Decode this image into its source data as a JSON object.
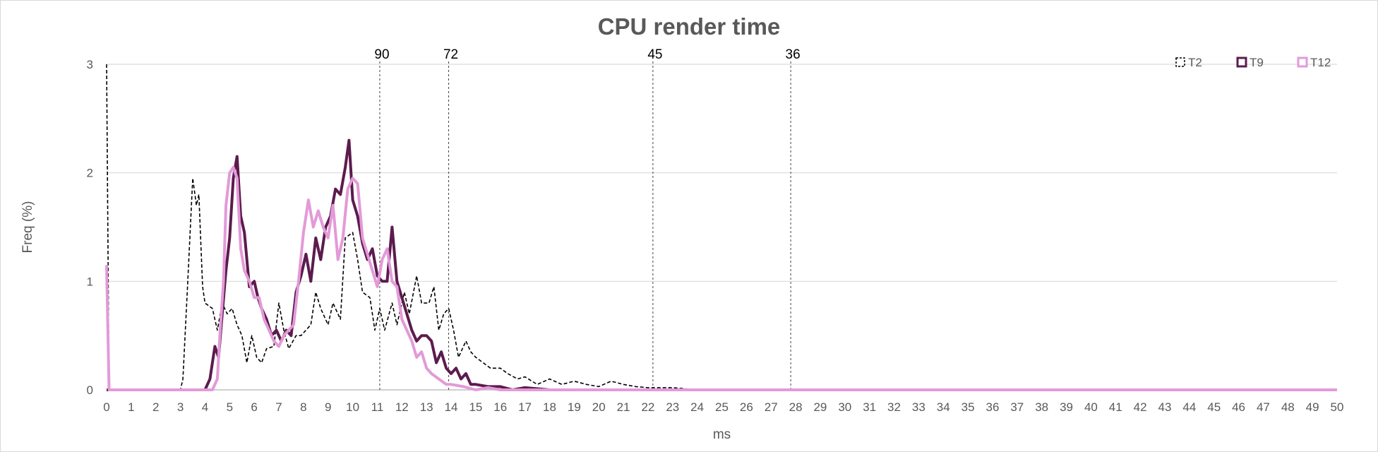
{
  "chart_data": {
    "type": "line",
    "title": "CPU render time",
    "xlabel": "ms",
    "ylabel": "Freq (%)",
    "xlim": [
      0,
      50
    ],
    "ylim": [
      0,
      3
    ],
    "x_ticks": [
      "0",
      "1",
      "2",
      "3",
      "4",
      "5",
      "6",
      "7",
      "8",
      "9",
      "10",
      "11",
      "12",
      "13",
      "14",
      "15",
      "16",
      "17",
      "18",
      "19",
      "20",
      "21",
      "22",
      "23",
      "24",
      "25",
      "26",
      "27",
      "28",
      "29",
      "30",
      "31",
      "32",
      "33",
      "34",
      "35",
      "36",
      "37",
      "38",
      "39",
      "40",
      "41",
      "42",
      "43",
      "44",
      "45",
      "46",
      "47",
      "48",
      "49",
      "50"
    ],
    "y_ticks": [
      "0",
      "1",
      "2",
      "3"
    ],
    "grid": "horizontal",
    "legend_position": "top-right",
    "reference_lines": [
      {
        "label": "90",
        "x": 11.1
      },
      {
        "label": "72",
        "x": 13.9
      },
      {
        "label": "45",
        "x": 22.2
      },
      {
        "label": "36",
        "x": 27.8
      }
    ],
    "series": [
      {
        "name": "T2",
        "color": "#000000",
        "style": "dashed",
        "points": [
          [
            0,
            3.0
          ],
          [
            0.1,
            0
          ],
          [
            3.0,
            0
          ],
          [
            3.1,
            0.1
          ],
          [
            3.3,
            1.0
          ],
          [
            3.5,
            1.95
          ],
          [
            3.65,
            1.7
          ],
          [
            3.75,
            1.8
          ],
          [
            3.9,
            0.95
          ],
          [
            4.0,
            0.8
          ],
          [
            4.3,
            0.75
          ],
          [
            4.5,
            0.55
          ],
          [
            4.7,
            0.8
          ],
          [
            4.9,
            0.7
          ],
          [
            5.1,
            0.75
          ],
          [
            5.3,
            0.6
          ],
          [
            5.5,
            0.5
          ],
          [
            5.7,
            0.25
          ],
          [
            5.9,
            0.5
          ],
          [
            6.1,
            0.3
          ],
          [
            6.3,
            0.25
          ],
          [
            6.5,
            0.38
          ],
          [
            6.8,
            0.4
          ],
          [
            7.0,
            0.8
          ],
          [
            7.2,
            0.55
          ],
          [
            7.4,
            0.38
          ],
          [
            7.7,
            0.5
          ],
          [
            7.9,
            0.5
          ],
          [
            8.1,
            0.55
          ],
          [
            8.3,
            0.6
          ],
          [
            8.5,
            0.9
          ],
          [
            8.7,
            0.75
          ],
          [
            9.0,
            0.6
          ],
          [
            9.2,
            0.8
          ],
          [
            9.5,
            0.65
          ],
          [
            9.7,
            1.4
          ],
          [
            10.0,
            1.45
          ],
          [
            10.2,
            1.2
          ],
          [
            10.4,
            0.9
          ],
          [
            10.7,
            0.85
          ],
          [
            10.9,
            0.55
          ],
          [
            11.1,
            0.75
          ],
          [
            11.3,
            0.55
          ],
          [
            11.6,
            0.8
          ],
          [
            11.8,
            0.6
          ],
          [
            12.1,
            0.9
          ],
          [
            12.3,
            0.7
          ],
          [
            12.6,
            1.05
          ],
          [
            12.8,
            0.8
          ],
          [
            13.1,
            0.8
          ],
          [
            13.3,
            0.95
          ],
          [
            13.5,
            0.55
          ],
          [
            13.7,
            0.7
          ],
          [
            13.9,
            0.75
          ],
          [
            14.1,
            0.55
          ],
          [
            14.3,
            0.3
          ],
          [
            14.6,
            0.45
          ],
          [
            14.8,
            0.35
          ],
          [
            15.0,
            0.3
          ],
          [
            15.3,
            0.25
          ],
          [
            15.6,
            0.2
          ],
          [
            16.0,
            0.2
          ],
          [
            16.3,
            0.15
          ],
          [
            16.7,
            0.1
          ],
          [
            17.0,
            0.12
          ],
          [
            17.5,
            0.05
          ],
          [
            18.0,
            0.1
          ],
          [
            18.5,
            0.05
          ],
          [
            19.0,
            0.08
          ],
          [
            19.5,
            0.05
          ],
          [
            20.0,
            0.03
          ],
          [
            20.5,
            0.08
          ],
          [
            21.0,
            0.05
          ],
          [
            21.5,
            0.03
          ],
          [
            22.0,
            0.02
          ],
          [
            23.0,
            0.02
          ],
          [
            24.0,
            0
          ],
          [
            50,
            0
          ]
        ]
      },
      {
        "name": "T9",
        "color": "#5c1b4e",
        "style": "solid",
        "points": [
          [
            0,
            0
          ],
          [
            4.0,
            0
          ],
          [
            4.2,
            0.1
          ],
          [
            4.4,
            0.4
          ],
          [
            4.55,
            0.3
          ],
          [
            4.7,
            0.7
          ],
          [
            4.85,
            1.1
          ],
          [
            5.0,
            1.4
          ],
          [
            5.15,
            1.95
          ],
          [
            5.3,
            2.15
          ],
          [
            5.45,
            1.6
          ],
          [
            5.6,
            1.45
          ],
          [
            5.8,
            0.95
          ],
          [
            6.0,
            1.0
          ],
          [
            6.15,
            0.85
          ],
          [
            6.3,
            0.75
          ],
          [
            6.5,
            0.65
          ],
          [
            6.7,
            0.5
          ],
          [
            6.9,
            0.55
          ],
          [
            7.1,
            0.45
          ],
          [
            7.3,
            0.55
          ],
          [
            7.5,
            0.5
          ],
          [
            7.7,
            0.9
          ],
          [
            7.9,
            1.05
          ],
          [
            8.1,
            1.25
          ],
          [
            8.3,
            1.0
          ],
          [
            8.5,
            1.4
          ],
          [
            8.7,
            1.2
          ],
          [
            8.9,
            1.5
          ],
          [
            9.1,
            1.6
          ],
          [
            9.3,
            1.85
          ],
          [
            9.5,
            1.8
          ],
          [
            9.7,
            2.05
          ],
          [
            9.85,
            2.3
          ],
          [
            10.0,
            1.75
          ],
          [
            10.2,
            1.6
          ],
          [
            10.4,
            1.35
          ],
          [
            10.6,
            1.2
          ],
          [
            10.8,
            1.3
          ],
          [
            11.0,
            1.05
          ],
          [
            11.2,
            1.0
          ],
          [
            11.4,
            1.0
          ],
          [
            11.6,
            1.5
          ],
          [
            11.8,
            1.0
          ],
          [
            12.0,
            0.85
          ],
          [
            12.2,
            0.7
          ],
          [
            12.4,
            0.55
          ],
          [
            12.6,
            0.45
          ],
          [
            12.8,
            0.5
          ],
          [
            13.0,
            0.5
          ],
          [
            13.2,
            0.45
          ],
          [
            13.4,
            0.25
          ],
          [
            13.6,
            0.35
          ],
          [
            13.8,
            0.2
          ],
          [
            14.0,
            0.15
          ],
          [
            14.2,
            0.2
          ],
          [
            14.4,
            0.1
          ],
          [
            14.6,
            0.15
          ],
          [
            14.8,
            0.05
          ],
          [
            15.0,
            0.05
          ],
          [
            15.5,
            0.03
          ],
          [
            16.0,
            0.03
          ],
          [
            16.5,
            0
          ],
          [
            17.0,
            0.02
          ],
          [
            18.0,
            0
          ],
          [
            50,
            0
          ]
        ]
      },
      {
        "name": "T12",
        "color": "#e39ad8",
        "style": "solid",
        "points": [
          [
            0,
            1.15
          ],
          [
            0.1,
            0
          ],
          [
            4.3,
            0
          ],
          [
            4.5,
            0.1
          ],
          [
            4.6,
            0.5
          ],
          [
            4.75,
            1.0
          ],
          [
            4.85,
            1.7
          ],
          [
            5.0,
            2.0
          ],
          [
            5.15,
            2.05
          ],
          [
            5.3,
            1.95
          ],
          [
            5.45,
            1.3
          ],
          [
            5.6,
            1.1
          ],
          [
            5.8,
            1.0
          ],
          [
            6.0,
            0.85
          ],
          [
            6.2,
            0.85
          ],
          [
            6.4,
            0.65
          ],
          [
            6.6,
            0.55
          ],
          [
            6.8,
            0.45
          ],
          [
            7.0,
            0.4
          ],
          [
            7.2,
            0.5
          ],
          [
            7.4,
            0.55
          ],
          [
            7.6,
            0.6
          ],
          [
            7.8,
            1.0
          ],
          [
            8.0,
            1.45
          ],
          [
            8.2,
            1.75
          ],
          [
            8.4,
            1.5
          ],
          [
            8.6,
            1.65
          ],
          [
            8.8,
            1.5
          ],
          [
            9.0,
            1.4
          ],
          [
            9.2,
            1.7
          ],
          [
            9.4,
            1.2
          ],
          [
            9.6,
            1.4
          ],
          [
            9.8,
            1.85
          ],
          [
            10.0,
            1.95
          ],
          [
            10.2,
            1.9
          ],
          [
            10.4,
            1.4
          ],
          [
            10.6,
            1.25
          ],
          [
            10.8,
            1.1
          ],
          [
            11.0,
            0.95
          ],
          [
            11.2,
            1.2
          ],
          [
            11.4,
            1.3
          ],
          [
            11.6,
            1.0
          ],
          [
            11.8,
            0.95
          ],
          [
            12.0,
            0.65
          ],
          [
            12.2,
            0.55
          ],
          [
            12.4,
            0.45
          ],
          [
            12.6,
            0.3
          ],
          [
            12.8,
            0.35
          ],
          [
            13.0,
            0.2
          ],
          [
            13.2,
            0.15
          ],
          [
            13.5,
            0.1
          ],
          [
            13.8,
            0.05
          ],
          [
            14.0,
            0.05
          ],
          [
            14.5,
            0.03
          ],
          [
            15.0,
            0
          ],
          [
            15.5,
            0.02
          ],
          [
            16.0,
            0
          ],
          [
            50,
            0
          ]
        ]
      }
    ]
  }
}
